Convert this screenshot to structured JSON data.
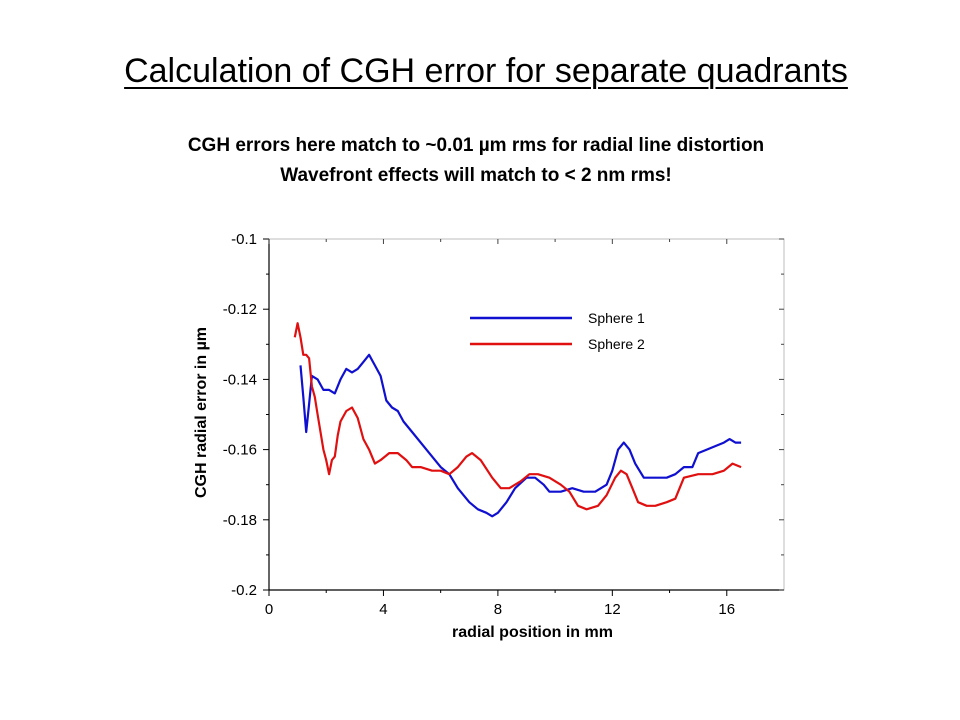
{
  "slide": {
    "title": "Calculation of CGH error for separate quadrants",
    "subtitle_line1": "CGH errors here match to ~0.01 µm rms for radial line distortion",
    "subtitle_line2": "Wavefront effects will match to < 2 nm rms!"
  },
  "chart_data": {
    "type": "line",
    "title": "",
    "xlabel": "radial position in mm",
    "ylabel": "CGH radial error in µm",
    "xlim": [
      0,
      18
    ],
    "ylim": [
      -0.2,
      -0.1
    ],
    "xticks": [
      0,
      4,
      8,
      12,
      16
    ],
    "xtick_labels": [
      "0",
      "4",
      "8",
      "12",
      "16"
    ],
    "yticks": [
      -0.1,
      -0.12,
      -0.14,
      -0.16,
      -0.18,
      -0.2
    ],
    "ytick_labels": [
      "-0.1",
      "-0.12",
      "-0.14",
      "-0.16",
      "-0.18",
      "-0.2"
    ],
    "grid": false,
    "legend_position": "top-right",
    "series": [
      {
        "name": "Sphere 1",
        "color": "#1010d0",
        "points": [
          [
            1.1,
            -0.136
          ],
          [
            1.2,
            -0.145
          ],
          [
            1.3,
            -0.155
          ],
          [
            1.4,
            -0.147
          ],
          [
            1.5,
            -0.139
          ],
          [
            1.7,
            -0.14
          ],
          [
            1.9,
            -0.143
          ],
          [
            2.1,
            -0.143
          ],
          [
            2.3,
            -0.144
          ],
          [
            2.5,
            -0.14
          ],
          [
            2.7,
            -0.137
          ],
          [
            2.9,
            -0.138
          ],
          [
            3.1,
            -0.137
          ],
          [
            3.3,
            -0.135
          ],
          [
            3.5,
            -0.133
          ],
          [
            3.7,
            -0.136
          ],
          [
            3.9,
            -0.139
          ],
          [
            4.1,
            -0.146
          ],
          [
            4.3,
            -0.148
          ],
          [
            4.5,
            -0.149
          ],
          [
            4.7,
            -0.152
          ],
          [
            5.0,
            -0.155
          ],
          [
            5.5,
            -0.16
          ],
          [
            6.0,
            -0.165
          ],
          [
            6.3,
            -0.167
          ],
          [
            6.6,
            -0.171
          ],
          [
            7.0,
            -0.175
          ],
          [
            7.3,
            -0.177
          ],
          [
            7.6,
            -0.178
          ],
          [
            7.8,
            -0.179
          ],
          [
            8.0,
            -0.178
          ],
          [
            8.3,
            -0.175
          ],
          [
            8.6,
            -0.171
          ],
          [
            9.0,
            -0.168
          ],
          [
            9.3,
            -0.168
          ],
          [
            9.6,
            -0.17
          ],
          [
            9.8,
            -0.172
          ],
          [
            10.2,
            -0.172
          ],
          [
            10.6,
            -0.171
          ],
          [
            11.0,
            -0.172
          ],
          [
            11.4,
            -0.172
          ],
          [
            11.8,
            -0.17
          ],
          [
            12.0,
            -0.166
          ],
          [
            12.2,
            -0.16
          ],
          [
            12.4,
            -0.158
          ],
          [
            12.6,
            -0.16
          ],
          [
            12.8,
            -0.164
          ],
          [
            13.1,
            -0.168
          ],
          [
            13.5,
            -0.168
          ],
          [
            13.9,
            -0.168
          ],
          [
            14.2,
            -0.167
          ],
          [
            14.5,
            -0.165
          ],
          [
            14.8,
            -0.165
          ],
          [
            15.0,
            -0.161
          ],
          [
            15.3,
            -0.16
          ],
          [
            15.6,
            -0.159
          ],
          [
            15.9,
            -0.158
          ],
          [
            16.1,
            -0.157
          ],
          [
            16.3,
            -0.158
          ],
          [
            16.5,
            -0.158
          ]
        ]
      },
      {
        "name": "Sphere 2",
        "color": "#e01010",
        "points": [
          [
            0.9,
            -0.128
          ],
          [
            1.0,
            -0.124
          ],
          [
            1.1,
            -0.128
          ],
          [
            1.2,
            -0.133
          ],
          [
            1.3,
            -0.133
          ],
          [
            1.4,
            -0.134
          ],
          [
            1.5,
            -0.142
          ],
          [
            1.6,
            -0.145
          ],
          [
            1.7,
            -0.15
          ],
          [
            1.8,
            -0.155
          ],
          [
            1.9,
            -0.16
          ],
          [
            2.0,
            -0.163
          ],
          [
            2.1,
            -0.167
          ],
          [
            2.2,
            -0.163
          ],
          [
            2.3,
            -0.162
          ],
          [
            2.4,
            -0.156
          ],
          [
            2.5,
            -0.152
          ],
          [
            2.7,
            -0.149
          ],
          [
            2.9,
            -0.148
          ],
          [
            3.1,
            -0.151
          ],
          [
            3.3,
            -0.157
          ],
          [
            3.5,
            -0.16
          ],
          [
            3.7,
            -0.164
          ],
          [
            3.9,
            -0.163
          ],
          [
            4.2,
            -0.161
          ],
          [
            4.5,
            -0.161
          ],
          [
            4.8,
            -0.163
          ],
          [
            5.0,
            -0.165
          ],
          [
            5.3,
            -0.165
          ],
          [
            5.7,
            -0.166
          ],
          [
            6.0,
            -0.166
          ],
          [
            6.3,
            -0.167
          ],
          [
            6.6,
            -0.165
          ],
          [
            6.9,
            -0.162
          ],
          [
            7.1,
            -0.161
          ],
          [
            7.4,
            -0.163
          ],
          [
            7.8,
            -0.168
          ],
          [
            8.1,
            -0.171
          ],
          [
            8.4,
            -0.171
          ],
          [
            8.8,
            -0.169
          ],
          [
            9.1,
            -0.167
          ],
          [
            9.4,
            -0.167
          ],
          [
            9.8,
            -0.168
          ],
          [
            10.2,
            -0.17
          ],
          [
            10.5,
            -0.172
          ],
          [
            10.8,
            -0.176
          ],
          [
            11.1,
            -0.177
          ],
          [
            11.5,
            -0.176
          ],
          [
            11.8,
            -0.173
          ],
          [
            12.1,
            -0.168
          ],
          [
            12.3,
            -0.166
          ],
          [
            12.5,
            -0.167
          ],
          [
            12.7,
            -0.171
          ],
          [
            12.9,
            -0.175
          ],
          [
            13.2,
            -0.176
          ],
          [
            13.5,
            -0.176
          ],
          [
            13.9,
            -0.175
          ],
          [
            14.2,
            -0.174
          ],
          [
            14.5,
            -0.168
          ],
          [
            15.0,
            -0.167
          ],
          [
            15.5,
            -0.167
          ],
          [
            15.9,
            -0.166
          ],
          [
            16.2,
            -0.164
          ],
          [
            16.5,
            -0.165
          ]
        ]
      }
    ]
  }
}
